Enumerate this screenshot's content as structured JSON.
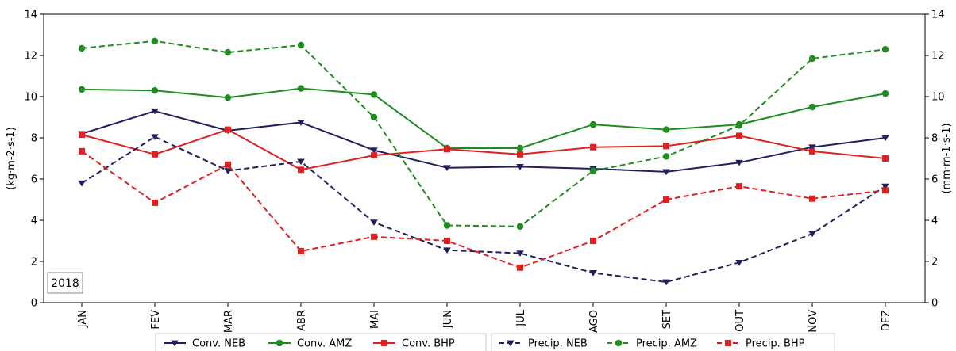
{
  "chart_data": {
    "type": "line",
    "categories": [
      "JAN",
      "FEV",
      "MAR",
      "ABR",
      "MAI",
      "JUN",
      "JUL",
      "AGO",
      "SET",
      "OUT",
      "NOV",
      "DEZ"
    ],
    "ylabel_left": "(kg·m-2·s-1)",
    "ylabel_right": "(mm·m-1·s-1)",
    "ylim": [
      0,
      14
    ],
    "yticks": [
      0,
      2,
      4,
      6,
      8,
      10,
      12,
      14
    ],
    "annotation": "2018",
    "legend_position": "bottom",
    "series": [
      {
        "name": "Conv. NEB",
        "color": "#1f1f5e",
        "dash": "solid",
        "marker": "triangle-down",
        "values": [
          8.2,
          9.3,
          8.35,
          8.75,
          7.4,
          6.55,
          6.6,
          6.5,
          6.35,
          6.8,
          7.55,
          8.0
        ]
      },
      {
        "name": "Conv. AMZ",
        "color": "#1e8c1e",
        "dash": "solid",
        "marker": "circle",
        "values": [
          10.35,
          10.3,
          9.95,
          10.4,
          10.1,
          7.5,
          7.5,
          8.65,
          8.4,
          8.65,
          9.5,
          10.15
        ]
      },
      {
        "name": "Conv. BHP",
        "color": "#e02020",
        "dash": "solid",
        "marker": "square",
        "values": [
          8.15,
          7.2,
          8.4,
          6.45,
          7.15,
          7.45,
          7.2,
          7.55,
          7.6,
          8.1,
          7.35,
          7.0
        ]
      },
      {
        "name": "Precip. NEB",
        "color": "#1f1f5e",
        "dash": "dashed",
        "marker": "triangle-down",
        "values": [
          5.8,
          8.05,
          6.4,
          6.85,
          3.9,
          2.55,
          2.4,
          1.45,
          1.0,
          1.95,
          3.35,
          5.65
        ]
      },
      {
        "name": "Precip. AMZ",
        "color": "#1e8c1e",
        "dash": "dashed",
        "marker": "circle",
        "values": [
          12.35,
          12.7,
          12.15,
          12.5,
          9.0,
          3.75,
          3.7,
          6.4,
          7.1,
          8.6,
          11.85,
          12.3
        ]
      },
      {
        "name": "Precip. BHP",
        "color": "#e02020",
        "dash": "dashed",
        "marker": "square",
        "values": [
          7.35,
          4.85,
          6.7,
          2.5,
          3.2,
          3.0,
          1.7,
          3.0,
          5.0,
          5.65,
          5.05,
          5.45
        ]
      }
    ]
  }
}
